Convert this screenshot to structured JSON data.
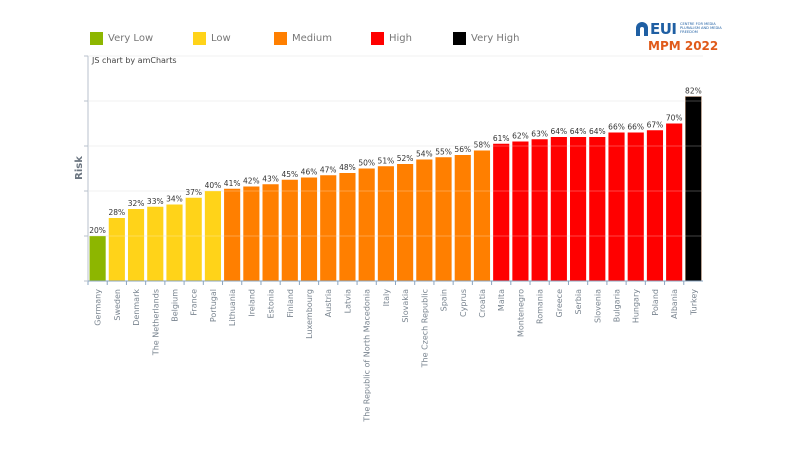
{
  "logo": {
    "brand": "EUI",
    "subtitle": "CENTRE FOR MEDIA PLURALISM AND MEDIA FREEDOM",
    "edition": "MPM 2022"
  },
  "credit": "JS chart by amCharts",
  "legend": [
    {
      "label": "Very Low",
      "color": "#8db600"
    },
    {
      "label": "Low",
      "color": "#ffd319"
    },
    {
      "label": "Medium",
      "color": "#ff7f00"
    },
    {
      "label": "High",
      "color": "#ff0000"
    },
    {
      "label": "Very High",
      "color": "#000000"
    }
  ],
  "chart_data": {
    "type": "bar",
    "title": "",
    "xlabel": "",
    "ylabel": "Risk",
    "ylim": [
      0,
      100
    ],
    "y_gridlines": [
      0,
      20,
      40,
      60,
      80,
      100
    ],
    "y_tick_labels_shown": false,
    "grid": true,
    "legend_position": "top",
    "value_suffix": "%",
    "categories": [
      "Germany",
      "Sweden",
      "Denmark",
      "The Netherlands",
      "Belgium",
      "France",
      "Portugal",
      "Lithuania",
      "Ireland",
      "Estonia",
      "Finland",
      "Luxembourg",
      "Austria",
      "Latvia",
      "The Republic of North Macedonia",
      "Italy",
      "Slovakia",
      "The Czech Republic",
      "Spain",
      "Cyprus",
      "Croatia",
      "Malta",
      "Montenegro",
      "Romania",
      "Greece",
      "Serbia",
      "Slovenia",
      "Bulgaria",
      "Hungary",
      "Poland",
      "Albania",
      "Turkey"
    ],
    "values": [
      20,
      28,
      32,
      33,
      34,
      37,
      40,
      41,
      42,
      43,
      45,
      46,
      47,
      48,
      50,
      51,
      52,
      54,
      55,
      56,
      58,
      61,
      62,
      63,
      64,
      64,
      64,
      66,
      66,
      67,
      70,
      82
    ],
    "risk_levels": [
      "Very Low",
      "Low",
      "Low",
      "Low",
      "Low",
      "Low",
      "Low",
      "Medium",
      "Medium",
      "Medium",
      "Medium",
      "Medium",
      "Medium",
      "Medium",
      "Medium",
      "Medium",
      "Medium",
      "Medium",
      "Medium",
      "Medium",
      "Medium",
      "High",
      "High",
      "High",
      "High",
      "High",
      "High",
      "High",
      "High",
      "High",
      "High",
      "Very High"
    ]
  }
}
